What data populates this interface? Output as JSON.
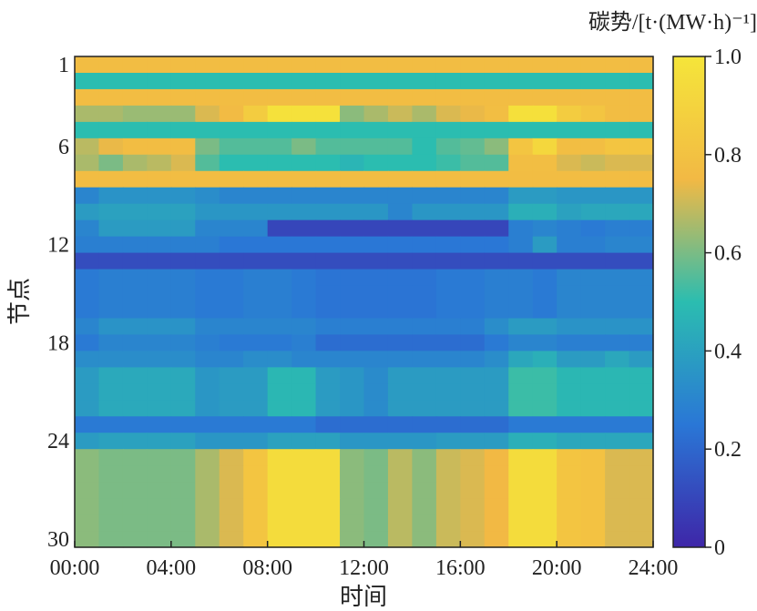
{
  "chart_data": {
    "type": "heatmap",
    "title": "",
    "xlabel": "时间",
    "ylabel": "节点",
    "colorbar_label": "碳势/[t·(MW·h)⁻¹]",
    "x_range": [
      "00:00",
      "24:00"
    ],
    "x_ticks": [
      "00:00",
      "04:00",
      "08:00",
      "12:00",
      "16:00",
      "20:00",
      "24:00"
    ],
    "y_range": [
      1,
      30
    ],
    "y_ticks": [
      "1",
      "6",
      "12",
      "18",
      "24",
      "30"
    ],
    "colorbar_range": [
      0,
      1.0
    ],
    "colorbar_ticks": [
      "0",
      "0.2",
      "0.4",
      "0.6",
      "0.8",
      "1.0"
    ],
    "colormap": "viridis-like",
    "time_hours": [
      0,
      1,
      2,
      3,
      4,
      5,
      6,
      7,
      8,
      9,
      10,
      11,
      12,
      13,
      14,
      15,
      16,
      17,
      18,
      19,
      20,
      21,
      22,
      23
    ],
    "rows": [
      {
        "node": 1,
        "values": [
          0.77,
          0.77,
          0.77,
          0.77,
          0.77,
          0.77,
          0.77,
          0.77,
          0.77,
          0.77,
          0.77,
          0.77,
          0.77,
          0.77,
          0.77,
          0.77,
          0.77,
          0.77,
          0.77,
          0.77,
          0.77,
          0.77,
          0.77,
          0.77
        ]
      },
      {
        "node": 2,
        "values": [
          0.5,
          0.5,
          0.5,
          0.5,
          0.5,
          0.5,
          0.5,
          0.5,
          0.5,
          0.5,
          0.5,
          0.5,
          0.5,
          0.5,
          0.5,
          0.5,
          0.5,
          0.5,
          0.5,
          0.5,
          0.5,
          0.5,
          0.5,
          0.5
        ]
      },
      {
        "node": 3,
        "values": [
          0.77,
          0.77,
          0.77,
          0.77,
          0.77,
          0.77,
          0.77,
          0.77,
          0.77,
          0.77,
          0.77,
          0.77,
          0.77,
          0.77,
          0.77,
          0.77,
          0.77,
          0.77,
          0.77,
          0.77,
          0.77,
          0.77,
          0.77,
          0.77
        ]
      },
      {
        "node": 4,
        "values": [
          0.66,
          0.66,
          0.64,
          0.64,
          0.64,
          0.72,
          0.76,
          0.86,
          0.98,
          0.98,
          0.98,
          0.62,
          0.66,
          0.7,
          0.66,
          0.72,
          0.74,
          0.78,
          0.97,
          0.97,
          0.86,
          0.82,
          0.77,
          0.77
        ]
      },
      {
        "node": 5,
        "values": [
          0.5,
          0.5,
          0.5,
          0.5,
          0.5,
          0.5,
          0.5,
          0.5,
          0.5,
          0.5,
          0.5,
          0.5,
          0.5,
          0.5,
          0.5,
          0.5,
          0.5,
          0.5,
          0.5,
          0.5,
          0.5,
          0.5,
          0.5,
          0.5
        ]
      },
      {
        "node": 6,
        "values": [
          0.68,
          0.74,
          0.77,
          0.77,
          0.77,
          0.6,
          0.55,
          0.55,
          0.55,
          0.6,
          0.55,
          0.55,
          0.55,
          0.55,
          0.5,
          0.55,
          0.57,
          0.62,
          0.82,
          0.92,
          0.78,
          0.78,
          0.82,
          0.82
        ]
      },
      {
        "node": 7,
        "values": [
          0.66,
          0.6,
          0.66,
          0.68,
          0.72,
          0.55,
          0.5,
          0.5,
          0.5,
          0.5,
          0.5,
          0.47,
          0.5,
          0.5,
          0.5,
          0.52,
          0.55,
          0.55,
          0.78,
          0.78,
          0.72,
          0.7,
          0.72,
          0.72
        ]
      },
      {
        "node": 8,
        "values": [
          0.77,
          0.77,
          0.77,
          0.77,
          0.77,
          0.77,
          0.77,
          0.77,
          0.77,
          0.77,
          0.77,
          0.77,
          0.77,
          0.77,
          0.77,
          0.77,
          0.77,
          0.77,
          0.77,
          0.77,
          0.77,
          0.77,
          0.77,
          0.77
        ]
      },
      {
        "node": 9,
        "values": [
          0.3,
          0.35,
          0.35,
          0.35,
          0.35,
          0.33,
          0.3,
          0.3,
          0.3,
          0.3,
          0.3,
          0.3,
          0.3,
          0.3,
          0.3,
          0.3,
          0.3,
          0.3,
          0.38,
          0.38,
          0.36,
          0.36,
          0.36,
          0.36
        ]
      },
      {
        "node": 10,
        "values": [
          0.38,
          0.4,
          0.4,
          0.4,
          0.4,
          0.36,
          0.36,
          0.36,
          0.36,
          0.36,
          0.36,
          0.36,
          0.36,
          0.3,
          0.36,
          0.36,
          0.36,
          0.36,
          0.45,
          0.45,
          0.4,
          0.42,
          0.42,
          0.42
        ]
      },
      {
        "node": 11,
        "values": [
          0.3,
          0.38,
          0.38,
          0.38,
          0.38,
          0.3,
          0.3,
          0.3,
          0.1,
          0.1,
          0.1,
          0.1,
          0.1,
          0.1,
          0.1,
          0.1,
          0.1,
          0.1,
          0.28,
          0.3,
          0.28,
          0.26,
          0.28,
          0.28
        ]
      },
      {
        "node": 12,
        "values": [
          0.28,
          0.28,
          0.28,
          0.28,
          0.28,
          0.28,
          0.25,
          0.25,
          0.25,
          0.25,
          0.25,
          0.25,
          0.25,
          0.25,
          0.25,
          0.25,
          0.25,
          0.25,
          0.28,
          0.38,
          0.28,
          0.28,
          0.3,
          0.3
        ]
      },
      {
        "node": 13,
        "values": [
          0.12,
          0.12,
          0.12,
          0.12,
          0.12,
          0.12,
          0.12,
          0.12,
          0.12,
          0.12,
          0.12,
          0.12,
          0.12,
          0.12,
          0.12,
          0.12,
          0.12,
          0.12,
          0.12,
          0.12,
          0.12,
          0.12,
          0.12,
          0.12
        ]
      },
      {
        "node": 14,
        "values": [
          0.26,
          0.28,
          0.28,
          0.28,
          0.28,
          0.26,
          0.26,
          0.28,
          0.28,
          0.26,
          0.24,
          0.24,
          0.24,
          0.24,
          0.24,
          0.26,
          0.26,
          0.28,
          0.28,
          0.26,
          0.3,
          0.3,
          0.3,
          0.3
        ]
      },
      {
        "node": 15,
        "values": [
          0.26,
          0.28,
          0.28,
          0.28,
          0.28,
          0.26,
          0.26,
          0.28,
          0.28,
          0.26,
          0.24,
          0.24,
          0.24,
          0.24,
          0.24,
          0.26,
          0.26,
          0.28,
          0.28,
          0.26,
          0.3,
          0.3,
          0.3,
          0.3
        ]
      },
      {
        "node": 16,
        "values": [
          0.26,
          0.28,
          0.28,
          0.28,
          0.28,
          0.26,
          0.26,
          0.28,
          0.28,
          0.26,
          0.24,
          0.24,
          0.24,
          0.24,
          0.24,
          0.26,
          0.26,
          0.28,
          0.28,
          0.26,
          0.3,
          0.3,
          0.3,
          0.3
        ]
      },
      {
        "node": 17,
        "values": [
          0.3,
          0.35,
          0.35,
          0.35,
          0.35,
          0.3,
          0.3,
          0.3,
          0.3,
          0.3,
          0.28,
          0.28,
          0.28,
          0.28,
          0.28,
          0.28,
          0.28,
          0.33,
          0.38,
          0.38,
          0.35,
          0.35,
          0.35,
          0.35
        ]
      },
      {
        "node": 18,
        "values": [
          0.26,
          0.3,
          0.3,
          0.3,
          0.3,
          0.28,
          0.26,
          0.26,
          0.26,
          0.28,
          0.22,
          0.22,
          0.22,
          0.22,
          0.22,
          0.22,
          0.22,
          0.26,
          0.3,
          0.3,
          0.28,
          0.28,
          0.28,
          0.28
        ]
      },
      {
        "node": 19,
        "values": [
          0.33,
          0.33,
          0.33,
          0.33,
          0.33,
          0.3,
          0.3,
          0.33,
          0.33,
          0.3,
          0.3,
          0.3,
          0.3,
          0.3,
          0.3,
          0.3,
          0.3,
          0.33,
          0.42,
          0.45,
          0.38,
          0.38,
          0.42,
          0.38
        ]
      },
      {
        "node": 20,
        "values": [
          0.38,
          0.43,
          0.43,
          0.43,
          0.43,
          0.36,
          0.38,
          0.38,
          0.48,
          0.48,
          0.38,
          0.36,
          0.32,
          0.38,
          0.38,
          0.38,
          0.38,
          0.38,
          0.52,
          0.52,
          0.48,
          0.48,
          0.48,
          0.48
        ]
      },
      {
        "node": 21,
        "values": [
          0.38,
          0.43,
          0.43,
          0.43,
          0.43,
          0.36,
          0.38,
          0.38,
          0.48,
          0.48,
          0.38,
          0.36,
          0.32,
          0.38,
          0.38,
          0.38,
          0.38,
          0.38,
          0.52,
          0.52,
          0.48,
          0.48,
          0.48,
          0.48
        ]
      },
      {
        "node": 22,
        "values": [
          0.38,
          0.43,
          0.43,
          0.43,
          0.43,
          0.36,
          0.38,
          0.38,
          0.48,
          0.48,
          0.38,
          0.36,
          0.32,
          0.38,
          0.38,
          0.38,
          0.38,
          0.38,
          0.52,
          0.52,
          0.48,
          0.48,
          0.48,
          0.48
        ]
      },
      {
        "node": 23,
        "values": [
          0.26,
          0.26,
          0.26,
          0.26,
          0.26,
          0.26,
          0.26,
          0.26,
          0.26,
          0.26,
          0.22,
          0.22,
          0.22,
          0.22,
          0.22,
          0.22,
          0.22,
          0.22,
          0.26,
          0.26,
          0.26,
          0.26,
          0.26,
          0.26
        ]
      },
      {
        "node": 24,
        "values": [
          0.38,
          0.4,
          0.4,
          0.4,
          0.4,
          0.36,
          0.36,
          0.36,
          0.4,
          0.4,
          0.4,
          0.36,
          0.36,
          0.36,
          0.36,
          0.38,
          0.38,
          0.38,
          0.45,
          0.45,
          0.42,
          0.42,
          0.42,
          0.42
        ]
      },
      {
        "node": 25,
        "values": [
          0.62,
          0.6,
          0.6,
          0.6,
          0.6,
          0.66,
          0.72,
          0.82,
          0.95,
          0.95,
          0.95,
          0.62,
          0.6,
          0.68,
          0.62,
          0.7,
          0.72,
          0.75,
          0.95,
          0.95,
          0.82,
          0.8,
          0.72,
          0.72
        ]
      },
      {
        "node": 26,
        "values": [
          0.62,
          0.6,
          0.6,
          0.6,
          0.6,
          0.66,
          0.72,
          0.82,
          0.95,
          0.95,
          0.95,
          0.62,
          0.6,
          0.68,
          0.62,
          0.7,
          0.72,
          0.75,
          0.95,
          0.95,
          0.82,
          0.8,
          0.72,
          0.72
        ]
      },
      {
        "node": 27,
        "values": [
          0.62,
          0.6,
          0.6,
          0.6,
          0.6,
          0.66,
          0.72,
          0.82,
          0.95,
          0.95,
          0.95,
          0.62,
          0.6,
          0.68,
          0.62,
          0.7,
          0.72,
          0.75,
          0.95,
          0.95,
          0.82,
          0.8,
          0.72,
          0.72
        ]
      },
      {
        "node": 28,
        "values": [
          0.62,
          0.6,
          0.6,
          0.6,
          0.6,
          0.66,
          0.72,
          0.82,
          0.95,
          0.95,
          0.95,
          0.62,
          0.6,
          0.68,
          0.62,
          0.7,
          0.72,
          0.75,
          0.95,
          0.95,
          0.82,
          0.8,
          0.72,
          0.72
        ]
      },
      {
        "node": 29,
        "values": [
          0.62,
          0.6,
          0.6,
          0.6,
          0.6,
          0.66,
          0.72,
          0.82,
          0.95,
          0.95,
          0.95,
          0.62,
          0.6,
          0.68,
          0.62,
          0.7,
          0.72,
          0.75,
          0.95,
          0.95,
          0.82,
          0.8,
          0.72,
          0.72
        ]
      },
      {
        "node": 30,
        "values": [
          0.62,
          0.6,
          0.6,
          0.6,
          0.6,
          0.66,
          0.72,
          0.82,
          0.95,
          0.95,
          0.95,
          0.62,
          0.6,
          0.68,
          0.62,
          0.7,
          0.72,
          0.75,
          0.95,
          0.95,
          0.82,
          0.8,
          0.72,
          0.72
        ]
      }
    ]
  }
}
